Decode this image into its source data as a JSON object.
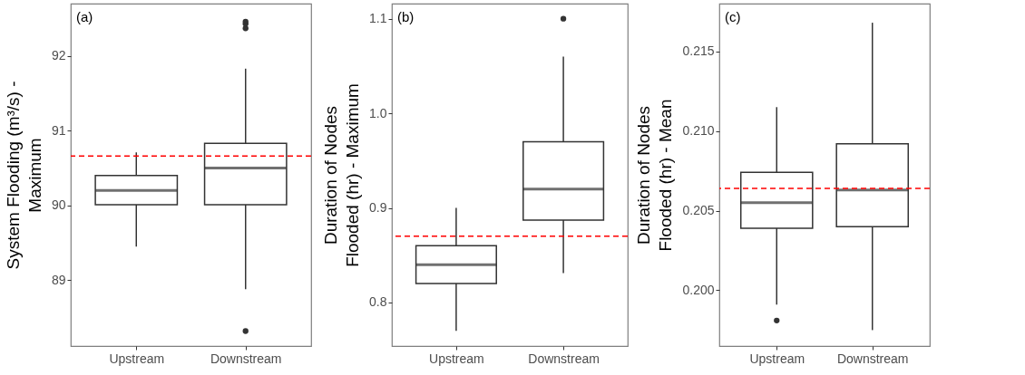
{
  "chart_data": [
    {
      "type": "box",
      "categories": [
        "Upstream",
        "Downstream"
      ],
      "ylabel": "System Flooding (m³/s) -\nMaximum",
      "annotations": [
        "(a)"
      ],
      "ylim": [
        88.12,
        92.7
      ],
      "yticks": [
        89,
        90,
        91,
        92
      ],
      "grid": false,
      "series": [
        {
          "color": "#333333",
          "boxes": [
            {
              "low": 89.45,
              "q1": 90.01,
              "median": 90.2,
              "q3": 90.4,
              "high": 90.71
            },
            {
              "low": 88.88,
              "q1": 90.01,
              "median": 90.5,
              "q3": 90.83,
              "high": 91.83,
              "outliers": [
                88.32,
                92.37,
                92.43,
                92.46
              ]
            }
          ]
        }
      ],
      "ref_lines": [
        {
          "axis": "y",
          "value": 90.66,
          "color": "#ff0000",
          "line_style": "dashed"
        }
      ]
    },
    {
      "type": "box",
      "categories": [
        "Upstream",
        "Downstream"
      ],
      "ylabel": "Duration of Nodes\nFlooded (hr) - Maximum",
      "annotations": [
        "(b)"
      ],
      "ylim": [
        0.754,
        1.116
      ],
      "yticks": [
        0.8,
        0.9,
        {
          "value": 1,
          "label": "1.0"
        },
        1.1
      ],
      "grid": false,
      "series": [
        {
          "color": "#333333",
          "boxes": [
            {
              "low": 0.77,
              "q1": 0.82,
              "median": 0.84,
              "q3": 0.86,
              "high": 0.9
            },
            {
              "low": 0.831,
              "q1": 0.887,
              "median": 0.92,
              "q3": 0.97,
              "high": 1.06,
              "outliers": [
                1.1
              ]
            }
          ]
        }
      ],
      "ref_lines": [
        {
          "axis": "y",
          "value": 0.87,
          "color": "#ff0000",
          "line_style": "dashed"
        }
      ]
    },
    {
      "type": "box",
      "categories": [
        "Upstream",
        "Downstream"
      ],
      "ylabel": "Duration of Nodes\nFlooded (hr) - Mean",
      "annotations": [
        "(c)"
      ],
      "ylim": [
        0.1965,
        0.218
      ],
      "yticks": [
        {
          "value": 0.2,
          "label": "0.200"
        },
        0.205,
        {
          "value": 0.21,
          "label": "0.210"
        },
        0.215
      ],
      "grid": false,
      "series": [
        {
          "color": "#333333",
          "boxes": [
            {
              "low": 0.1991,
              "q1": 0.2039,
              "median": 0.2055,
              "q3": 0.2074,
              "high": 0.2115,
              "outliers": [
                0.1981
              ]
            },
            {
              "low": 0.1975,
              "q1": 0.204,
              "median": 0.2063,
              "q3": 0.2092,
              "high": 0.2168
            }
          ]
        }
      ],
      "ref_lines": [
        {
          "axis": "y",
          "value": 0.2064,
          "color": "#ff0000",
          "line_style": "dashed"
        }
      ]
    }
  ]
}
